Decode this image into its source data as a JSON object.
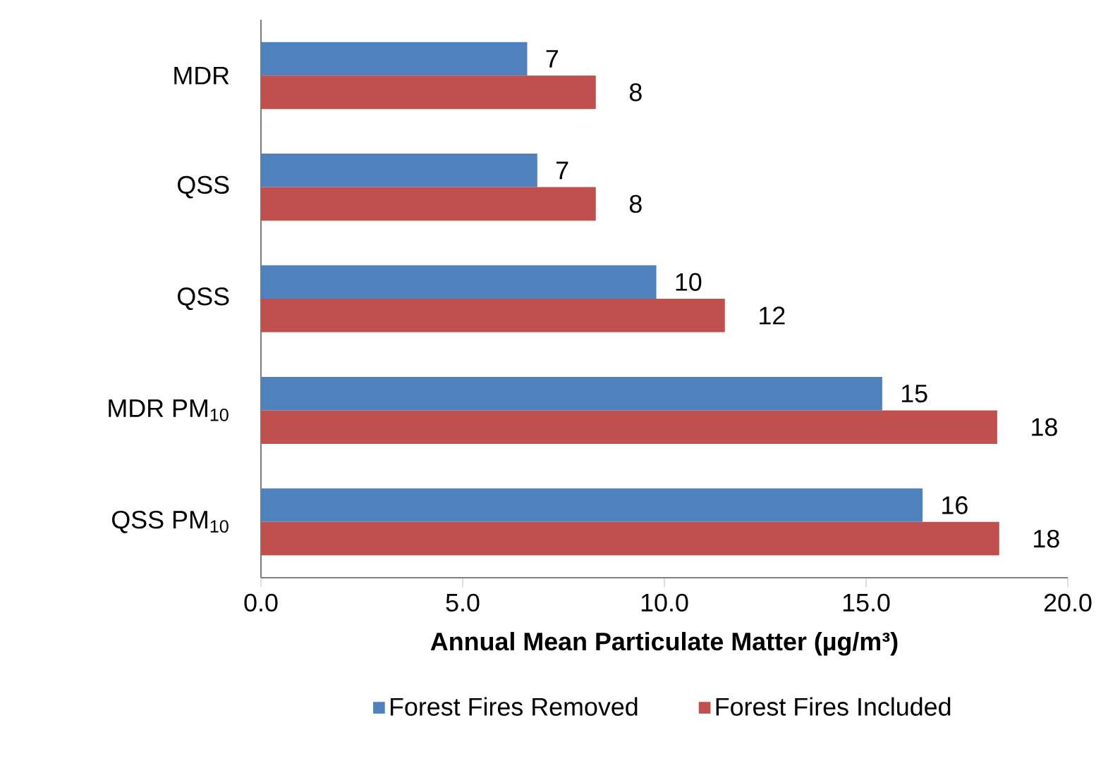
{
  "chart_data": {
    "type": "bar",
    "orientation": "horizontal",
    "xlabel": "**Annual Mean Particulate Matter (µg/m³)**",
    "categories": [
      "MDR",
      "QSS",
      "QSS",
      "MDR PM$_{10}$",
      "QSS PM$_{10}$"
    ],
    "series": [
      {
        "name": "Forest Fires Removed",
        "color": "#4f81bd",
        "values": [
          6.6,
          6.85,
          9.8,
          15.4,
          16.4
        ],
        "value_labels": [
          "7",
          "7",
          "10",
          "15",
          "16"
        ]
      },
      {
        "name": "Forest Fires Included",
        "color": "#c0504d",
        "values": [
          8.3,
          8.3,
          11.5,
          18.25,
          18.3
        ],
        "value_labels": [
          "8",
          "8",
          "12",
          "18",
          "18"
        ]
      }
    ],
    "xlim": [
      0,
      20
    ],
    "xticks": [
      {
        "value": 0,
        "label": "0.0"
      },
      {
        "value": 5,
        "label": "5.0"
      },
      {
        "value": 10,
        "label": "10.0"
      },
      {
        "value": 15,
        "label": "15.0"
      },
      {
        "value": 20,
        "label": "20.0"
      }
    ],
    "legend": "bottom",
    "grid": false
  }
}
